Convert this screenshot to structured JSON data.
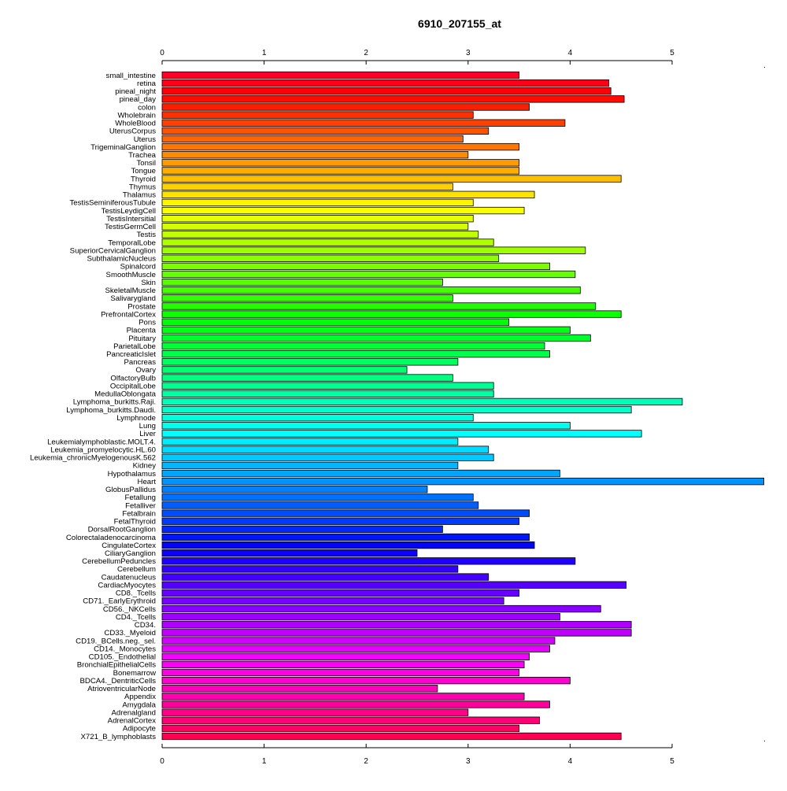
{
  "chart_data": {
    "type": "bar",
    "orientation": "horizontal",
    "title": "6910_207155_at",
    "xlabel": "",
    "ylabel": "",
    "xlim": [
      0,
      5.9
    ],
    "x_ticks": [
      0,
      1,
      2,
      3,
      4,
      5
    ],
    "x_tick_labels": [
      "0",
      "1",
      "2",
      "3",
      "4",
      "5"
    ],
    "axes_top_and_bottom": true,
    "grid": false,
    "legend": "none",
    "bar_color_scheme": "rainbow",
    "categories": [
      "small_intestine",
      "retina",
      "pineal_night",
      "pineal_day",
      "colon",
      "Wholebrain",
      "WholeBlood",
      "UterusCorpus",
      "Uterus",
      "TrigeminalGanglion",
      "Trachea",
      "Tonsil",
      "Tongue",
      "Thyroid",
      "Thymus",
      "Thalamus",
      "TestisSeminiferousTubule",
      "TestisLeydigCell",
      "TestisIntersitial",
      "TestisGermCell",
      "Testis",
      "TemporalLobe",
      "SuperiorCervicalGanglion",
      "SubthalamicNucleus",
      "Spinalcord",
      "SmoothMuscle",
      "Skin",
      "SkeletalMuscle",
      "Salivarygland",
      "Prostate",
      "PrefrontalCortex",
      "Pons",
      "Placenta",
      "Pituitary",
      "ParietalLobe",
      "PancreaticIslet",
      "Pancreas",
      "Ovary",
      "OlfactoryBulb",
      "OccipitalLobe",
      "MedullaOblongata",
      "Lymphoma_burkitts.Raji.",
      "Lymphoma_burkitts.Daudi.",
      "Lymphnode",
      "Lung",
      "Liver",
      "Leukemialymphoblastic.MOLT.4.",
      "Leukemia_promyelocytic.HL.60",
      "Leukemia_chronicMyelogenousK.562",
      "Kidney",
      "Hypothalamus",
      "Heart",
      "GlobusPallidus",
      "Fetallung",
      "Fetalliver",
      "Fetalbrain",
      "FetalThyroid",
      "DorsalRootGanglion",
      "Colorectaladenocarcinoma",
      "CingulateCortex",
      "CiliaryGanglion",
      "CerebellumPeduncles",
      "Cerebellum",
      "Caudatenucleus",
      "CardiacMyocytes",
      "CD8._Tcells",
      "CD71._EarlyErythroid",
      "CD56._NKCells",
      "CD4._Tcells",
      "CD34.",
      "CD33._Myeloid",
      "CD19._BCells.neg._sel.",
      "CD14._Monocytes",
      "CD105._Endothelial",
      "BronchialEpithelialCells",
      "Bonemarrow",
      "BDCA4._DentriticCells",
      "AtrioventricularNode",
      "Appendix",
      "Amygdala",
      "Adrenalgland",
      "AdrenalCortex",
      "Adipocyte",
      "X721_B_lymphoblasts"
    ],
    "values": [
      3.5,
      4.38,
      4.4,
      4.53,
      3.6,
      3.05,
      3.95,
      3.2,
      2.95,
      3.5,
      3.0,
      3.5,
      3.5,
      4.5,
      2.85,
      3.65,
      3.05,
      3.55,
      3.05,
      3.0,
      3.1,
      3.25,
      4.15,
      3.3,
      3.8,
      4.05,
      2.75,
      4.1,
      2.85,
      4.25,
      4.5,
      3.4,
      4.0,
      4.2,
      3.75,
      3.8,
      2.9,
      2.4,
      2.85,
      3.25,
      3.25,
      5.1,
      4.6,
      3.05,
      4.0,
      4.7,
      2.9,
      3.2,
      3.25,
      2.9,
      3.9,
      5.9,
      2.6,
      3.05,
      3.1,
      3.6,
      3.5,
      2.75,
      3.6,
      3.65,
      2.5,
      4.05,
      2.9,
      3.2,
      4.55,
      3.5,
      3.35,
      4.3,
      3.9,
      4.6,
      4.6,
      3.85,
      3.8,
      3.6,
      3.55,
      3.5,
      4.0,
      2.7,
      3.55,
      3.8,
      3.0,
      3.7,
      3.5,
      4.5
    ]
  }
}
